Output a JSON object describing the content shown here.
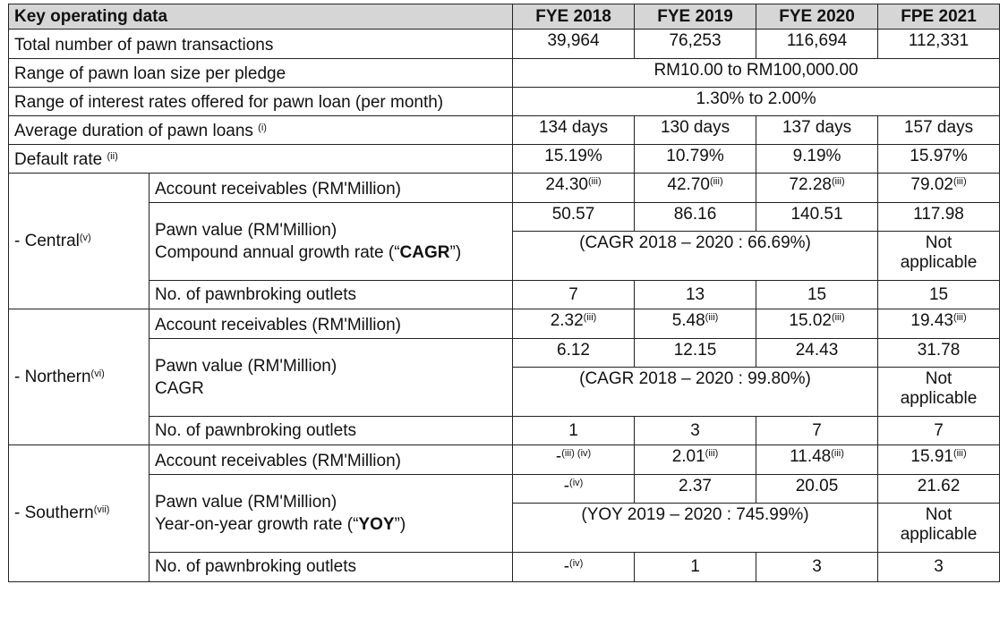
{
  "header": {
    "title": "Key operating data",
    "years": [
      "FYE 2018",
      "FYE 2019",
      "FYE 2020",
      "FPE 2021"
    ]
  },
  "rows": {
    "pawn_transactions": {
      "label": "Total number of pawn transactions",
      "values": [
        "39,964",
        "76,253",
        "116,694",
        "112,331"
      ]
    },
    "loan_size": {
      "label": "Range of pawn loan size per pledge",
      "value": "RM10.00 to RM100,000.00"
    },
    "interest_rates": {
      "label": "Range of interest rates offered for pawn loan (per month)",
      "value": "1.30% to 2.00%"
    },
    "avg_duration": {
      "label": "Average duration of pawn loans",
      "note": "(i)",
      "values": [
        "134 days",
        "130 days",
        "137 days",
        "157 days"
      ]
    },
    "default_rate": {
      "label": "Default rate",
      "note": "(ii)",
      "values": [
        "15.19%",
        "10.79%",
        "9.19%",
        "15.97%"
      ]
    }
  },
  "regions": {
    "central": {
      "name": "- Central",
      "note": "(v)",
      "ar_label": "Account receivables (RM'Million)",
      "ar_values": [
        "24.30",
        "42.70",
        "72.28",
        "79.02"
      ],
      "ar_notes": [
        "(iii)",
        "(iii)",
        "(iii)",
        "(iii)"
      ],
      "pv_label": "Pawn value (RM'Million)",
      "pv_values": [
        "50.57",
        "86.16",
        "140.51",
        "117.98"
      ],
      "growth_label_pre": "Compound annual growth rate (“",
      "growth_label_bold": "CAGR",
      "growth_label_post": "”)",
      "growth_value": "(CAGR 2018 – 2020 : 66.69%)",
      "growth_na_1": "Not",
      "growth_na_2": "applicable",
      "outlets_label": "No. of pawnbroking outlets",
      "outlets_values": [
        "7",
        "13",
        "15",
        "15"
      ]
    },
    "northern": {
      "name": "- Northern",
      "note": "(vi)",
      "ar_label": "Account receivables (RM'Million)",
      "ar_values": [
        "2.32",
        "5.48",
        "15.02",
        "19.43"
      ],
      "ar_notes": [
        "(iii)",
        "(iii)",
        "(iii)",
        "(iii)"
      ],
      "pv_label": "Pawn value (RM'Million)",
      "pv_values": [
        "6.12",
        "12.15",
        "24.43",
        "31.78"
      ],
      "growth_label": "CAGR",
      "growth_value": "(CAGR 2018 – 2020 : 99.80%)",
      "growth_na_1": "Not",
      "growth_na_2": "applicable",
      "outlets_label": "No. of pawnbroking outlets",
      "outlets_values": [
        "1",
        "3",
        "7",
        "7"
      ]
    },
    "southern": {
      "name": "- Southern",
      "note": "(vii)",
      "ar_label": "Account receivables (RM'Million)",
      "ar_values": [
        "-",
        "2.01",
        "11.48",
        "15.91"
      ],
      "ar_notes": [
        "(iii) (iv)",
        "(iii)",
        "(iii)",
        "(iii)"
      ],
      "pv_label": "Pawn value (RM'Million)",
      "pv_values": [
        "-",
        "2.37",
        "20.05",
        "21.62"
      ],
      "pv_note_first": "(iv)",
      "growth_label_pre": "Year-on-year growth rate (“",
      "growth_label_bold": "YOY",
      "growth_label_post": "”)",
      "growth_value": "(YOY 2019 – 2020 : 745.99%)",
      "growth_na_1": "Not",
      "growth_na_2": "applicable",
      "outlets_label": "No. of pawnbroking outlets",
      "outlets_values": [
        "-",
        "1",
        "3",
        "3"
      ],
      "outlets_note_first": "(iv)"
    }
  }
}
